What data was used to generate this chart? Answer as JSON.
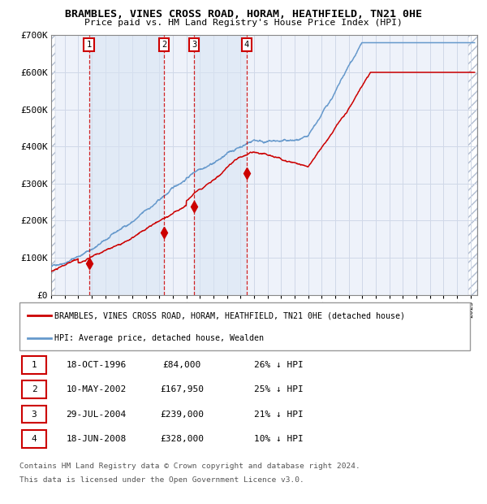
{
  "title": "BRAMBLES, VINES CROSS ROAD, HORAM, HEATHFIELD, TN21 0HE",
  "subtitle": "Price paid vs. HM Land Registry's House Price Index (HPI)",
  "xmin": 1994.0,
  "xmax": 2025.5,
  "ymin": 0,
  "ymax": 700000,
  "yticks": [
    0,
    100000,
    200000,
    300000,
    400000,
    500000,
    600000,
    700000
  ],
  "ytick_labels": [
    "£0",
    "£100K",
    "£200K",
    "£300K",
    "£400K",
    "£500K",
    "£600K",
    "£700K"
  ],
  "sale_dates": [
    1996.79,
    2002.36,
    2004.58,
    2008.46
  ],
  "sale_prices": [
    84000,
    167950,
    239000,
    328000
  ],
  "sale_labels": [
    "1",
    "2",
    "3",
    "4"
  ],
  "legend_property": "BRAMBLES, VINES CROSS ROAD, HORAM, HEATHFIELD, TN21 0HE (detached house)",
  "legend_hpi": "HPI: Average price, detached house, Wealden",
  "table_rows": [
    {
      "label": "1",
      "date": "18-OCT-1996",
      "price": "£84,000",
      "hpi": "26% ↓ HPI"
    },
    {
      "label": "2",
      "date": "10-MAY-2002",
      "price": "£167,950",
      "hpi": "25% ↓ HPI"
    },
    {
      "label": "3",
      "date": "29-JUL-2004",
      "price": "£239,000",
      "hpi": "21% ↓ HPI"
    },
    {
      "label": "4",
      "date": "18-JUN-2008",
      "price": "£328,000",
      "hpi": "10% ↓ HPI"
    }
  ],
  "footer1": "Contains HM Land Registry data © Crown copyright and database right 2024.",
  "footer2": "This data is licensed under the Open Government Licence v3.0.",
  "property_line_color": "#cc0000",
  "hpi_line_color": "#6699cc",
  "vline_color": "#cc0000",
  "sale_marker_color": "#cc0000",
  "grid_color": "#d0d8e8",
  "plot_bg": "#eef2fa"
}
